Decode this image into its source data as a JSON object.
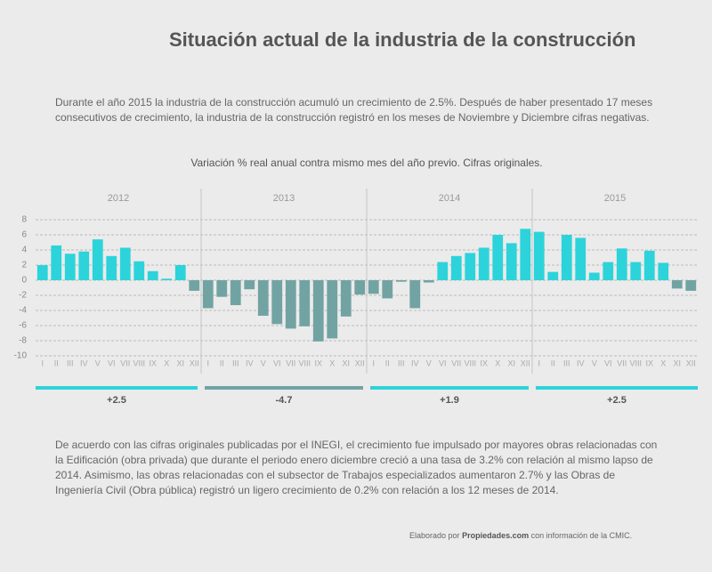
{
  "header": {
    "title": "Situación actual de la industria de la construcción",
    "intro": "Durante el año 2015 la industria de la construcción acumuló un crecimiento de 2.5%. Después de haber presentado 17 meses consecutivos de crecimiento, la industria de la construcción registró en los meses de Noviembre y Diciembre cifras negativas."
  },
  "chart_data": {
    "type": "bar",
    "title": "Variación % real anual contra mismo mes del año previo. Cifras originales.",
    "years": [
      "2012",
      "2013",
      "2014",
      "2015"
    ],
    "categories": [
      "I",
      "II",
      "III",
      "IV",
      "V",
      "VI",
      "VII",
      "VIII",
      "IX",
      "X",
      "XI",
      "XII",
      "I",
      "II",
      "III",
      "IV",
      "V",
      "VI",
      "VII",
      "VIII",
      "IX",
      "X",
      "XI",
      "XII",
      "I",
      "II",
      "III",
      "IV",
      "V",
      "VI",
      "VII",
      "VIII",
      "IX",
      "X",
      "XI",
      "XII",
      "I",
      "II",
      "III",
      "IV",
      "V",
      "VI",
      "VII",
      "VIII",
      "IX",
      "X",
      "XI",
      "XII"
    ],
    "values": [
      2.0,
      4.6,
      3.5,
      3.8,
      5.4,
      3.2,
      4.3,
      2.5,
      1.2,
      0.2,
      2.0,
      -1.4,
      -3.7,
      -2.2,
      -3.3,
      -1.2,
      -4.7,
      -5.8,
      -6.4,
      -6.1,
      -8.1,
      -7.7,
      -4.8,
      -1.9,
      -1.8,
      -2.4,
      -0.2,
      -3.7,
      -0.3,
      2.4,
      3.2,
      3.6,
      4.3,
      6.0,
      4.9,
      6.8,
      6.4,
      1.1,
      6.0,
      5.6,
      1.0,
      2.4,
      4.2,
      2.4,
      3.9,
      2.3,
      -1.1,
      -1.4
    ],
    "positive_color": "#2dd3da",
    "negative_color": "#72a3a3",
    "ylim": [
      -10,
      8
    ],
    "yticks": [
      -10,
      -8,
      -6,
      -4,
      -2,
      0,
      2,
      4,
      6,
      8
    ],
    "grid": true,
    "annual": {
      "values": [
        2.5,
        -4.7,
        1.9,
        2.5
      ],
      "value_labels": [
        "+2.5",
        "-4.7",
        "+1.9",
        "+2.5"
      ]
    }
  },
  "body": {
    "text": "De acuerdo con las cifras originales publicadas por el INEGI, el crecimiento fue impulsado por mayores obras relacionadas con la Edificación (obra privada) que durante el periodo enero diciembre creció a una tasa de 3.2% con relación al mismo lapso de 2014. Asimismo, las obras relacionadas con el subsector de Trabajos especializados aumentaron 2.7% y las Obras de Ingeniería Civil (Obra pública) registró un ligero crecimiento de 0.2% con relación a los 12 meses de 2014."
  },
  "footer": {
    "prefix": "Elaborado por",
    "brand": "Propiedades.com",
    "suffix": "con información de la CMIC."
  }
}
